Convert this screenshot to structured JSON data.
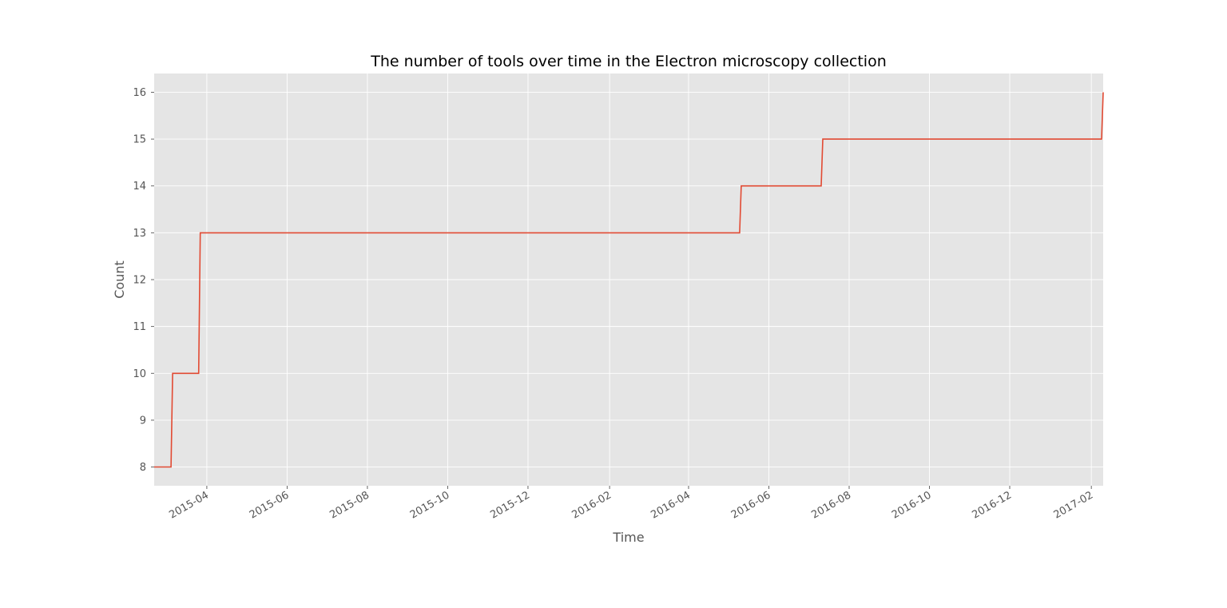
{
  "chart_data": {
    "type": "line",
    "title": "The number of tools over time in the Electron microscopy collection",
    "xlabel": "Time",
    "ylabel": "Count",
    "x_axis_type": "date",
    "xlim": [
      "2015-02-20",
      "2017-02-10"
    ],
    "ylim": [
      7.6,
      16.4
    ],
    "grid": true,
    "legend": "none",
    "colors": {
      "line": "#e24a33",
      "plot_background": "#e5e5e5",
      "grid": "#ffffff"
    },
    "x_ticks": [
      "2015-04",
      "2015-06",
      "2015-08",
      "2015-10",
      "2015-12",
      "2016-02",
      "2016-04",
      "2016-06",
      "2016-08",
      "2016-10",
      "2016-12",
      "2017-02"
    ],
    "y_ticks": [
      "8",
      "9",
      "10",
      "11",
      "12",
      "13",
      "14",
      "15",
      "16"
    ],
    "series": [
      {
        "step": "post",
        "points": [
          {
            "x": "2015-02-20",
            "y": 8
          },
          {
            "x": "2015-03-06",
            "y": 10
          },
          {
            "x": "2015-03-27",
            "y": 13
          },
          {
            "x": "2016-05-11",
            "y": 14
          },
          {
            "x": "2016-07-12",
            "y": 15
          },
          {
            "x": "2017-02-10",
            "y": 16
          }
        ]
      }
    ]
  }
}
